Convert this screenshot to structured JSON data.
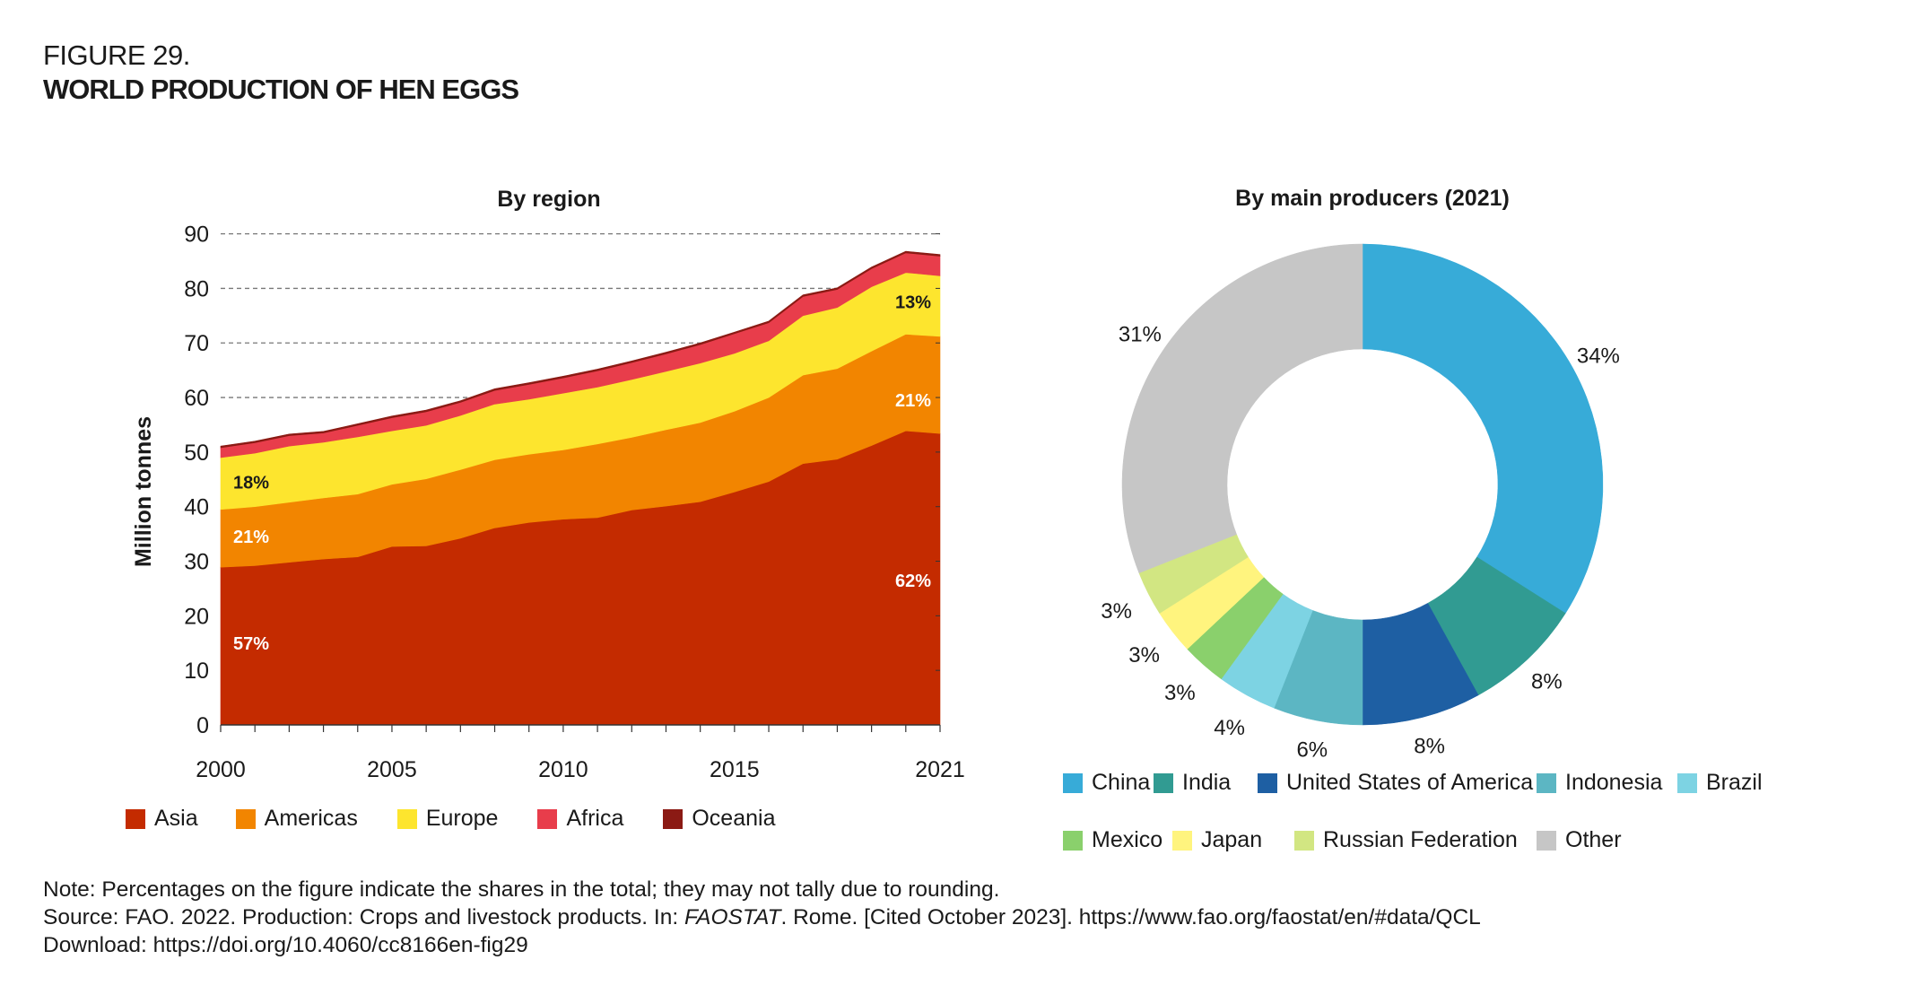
{
  "figure": {
    "number": "FIGURE 29.",
    "title": "WORLD PRODUCTION OF HEN EGGS"
  },
  "chart_data": [
    {
      "type": "area",
      "stacked": true,
      "title": "By region",
      "xlabel": "",
      "ylabel": "Million tonnes",
      "ylim": [
        0,
        90
      ],
      "yticks": [
        0,
        10,
        20,
        30,
        40,
        50,
        60,
        70,
        80,
        90
      ],
      "xlim": [
        2000,
        2021
      ],
      "xticks": [
        2000,
        2005,
        2010,
        2015,
        2021
      ],
      "xtick_labels": [
        "2000",
        "2005",
        "2010",
        "2015",
        "2021"
      ],
      "grid": "horizontal dashed",
      "legend_position": "bottom",
      "x": [
        2000,
        2001,
        2002,
        2003,
        2004,
        2005,
        2006,
        2007,
        2008,
        2009,
        2010,
        2011,
        2012,
        2013,
        2014,
        2015,
        2016,
        2017,
        2018,
        2019,
        2020,
        2021
      ],
      "series": [
        {
          "name": "Asia",
          "color": "#c42b00",
          "values": [
            28.9,
            29.2,
            29.8,
            30.4,
            30.8,
            32.7,
            32.8,
            34.2,
            36.1,
            37.1,
            37.7,
            38.0,
            39.4,
            40.1,
            40.9,
            42.7,
            44.6,
            47.9,
            48.7,
            51.2,
            53.9,
            53.4
          ]
        },
        {
          "name": "Americas",
          "color": "#f28500",
          "values": [
            10.6,
            10.8,
            11.0,
            11.2,
            11.5,
            11.4,
            12.3,
            12.6,
            12.5,
            12.5,
            12.7,
            13.5,
            13.3,
            14.0,
            14.5,
            14.8,
            15.4,
            16.2,
            16.6,
            17.3,
            17.7,
            17.8
          ]
        },
        {
          "name": "Europe",
          "color": "#fde52e",
          "values": [
            9.5,
            9.8,
            10.3,
            10.2,
            10.5,
            9.8,
            9.8,
            9.9,
            10.2,
            10.1,
            10.4,
            10.4,
            10.6,
            10.7,
            10.9,
            10.6,
            10.4,
            10.9,
            11.2,
            11.8,
            11.3,
            11.1
          ]
        },
        {
          "name": "Africa",
          "color": "#e83d4b",
          "values": [
            1.8,
            1.9,
            1.9,
            1.7,
            2.1,
            2.4,
            2.5,
            2.4,
            2.5,
            2.7,
            2.8,
            3.0,
            3.1,
            3.2,
            3.4,
            3.6,
            3.3,
            3.5,
            3.3,
            3.3,
            3.6,
            3.6
          ]
        },
        {
          "name": "Oceania",
          "color": "#8b1a14",
          "values": [
            0.3,
            0.3,
            0.3,
            0.3,
            0.3,
            0.3,
            0.3,
            0.3,
            0.3,
            0.3,
            0.3,
            0.3,
            0.3,
            0.3,
            0.3,
            0.3,
            0.3,
            0.3,
            0.3,
            0.3,
            0.3,
            0.3
          ]
        }
      ],
      "annotations": [
        {
          "series": "Asia",
          "year": 2000,
          "text": "57%",
          "y": 15,
          "color": "#ffffff"
        },
        {
          "series": "Americas",
          "year": 2000,
          "text": "21%",
          "y": 34.5,
          "color": "#ffffff"
        },
        {
          "series": "Europe",
          "year": 2000,
          "text": "18%",
          "y": 44.5,
          "color": "#1a1a1a"
        },
        {
          "series": "Asia",
          "year": 2021,
          "text": "62%",
          "y": 26.5,
          "color": "#ffffff"
        },
        {
          "series": "Americas",
          "year": 2021,
          "text": "21%",
          "y": 59.5,
          "color": "#ffffff"
        },
        {
          "series": "Europe",
          "year": 2021,
          "text": "13%",
          "y": 77.5,
          "color": "#1a1a1a"
        }
      ]
    },
    {
      "type": "pie",
      "donut": true,
      "title": "By main producers (2021)",
      "legend_position": "bottom",
      "slices": [
        {
          "label": "China",
          "value": 34,
          "text": "34%",
          "color": "#37abd8"
        },
        {
          "label": "India",
          "value": 8,
          "text": "8%",
          "color": "#319b92"
        },
        {
          "label": "United States of America",
          "value": 8,
          "text": "8%",
          "color": "#1e5fa3"
        },
        {
          "label": "Indonesia",
          "value": 6,
          "text": "6%",
          "color": "#5cb6c3"
        },
        {
          "label": "Brazil",
          "value": 4,
          "text": "4%",
          "color": "#7dd3e3"
        },
        {
          "label": "Mexico",
          "value": 3,
          "text": "3%",
          "color": "#8ad06c"
        },
        {
          "label": "Japan",
          "value": 3,
          "text": "3%",
          "color": "#fff47e"
        },
        {
          "label": "Russian Federation",
          "value": 3,
          "text": "3%",
          "color": "#d2e682"
        },
        {
          "label": "Other",
          "value": 31,
          "text": "31%",
          "color": "#c6c6c6"
        }
      ]
    }
  ],
  "notes": {
    "note": "Note: Percentages on the figure indicate the shares in the total; they may not tally due to rounding.",
    "source_prefix": "Source: FAO. 2022. Production: Crops and livestock products. In: ",
    "source_italic": "FAOSTAT",
    "source_suffix": ". Rome. [Cited October 2023]. https://www.fao.org/faostat/en/#data/QCL",
    "download": "Download: https://doi.org/10.4060/cc8166en-fig29"
  }
}
